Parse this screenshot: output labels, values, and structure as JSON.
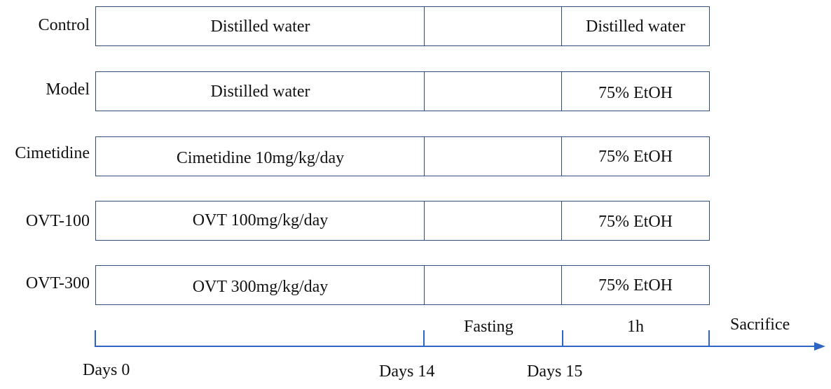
{
  "groups": [
    {
      "label": "Control",
      "pretreatment": "Distilled water",
      "induction": "Distilled water"
    },
    {
      "label": "Model",
      "pretreatment": "Distilled water",
      "induction": "75% EtOH"
    },
    {
      "label": "Cimetidine",
      "pretreatment": "Cimetidine  10mg/kg/day",
      "induction": "75% EtOH"
    },
    {
      "label": "OVT-100",
      "pretreatment": "OVT 100mg/kg/day",
      "induction": "75% EtOH"
    },
    {
      "label": "OVT-300",
      "pretreatment": "OVT 300mg/kg/day",
      "induction": "75% EtOH"
    }
  ],
  "timeline": {
    "phase_fasting": "Fasting",
    "phase_induction": "1h",
    "end_label": "Sacrifice",
    "ticks": [
      "Days 0",
      "Days 14",
      "Days 15"
    ]
  },
  "colors": {
    "box_border": "#2f4d78",
    "axis": "#2e66c5"
  }
}
